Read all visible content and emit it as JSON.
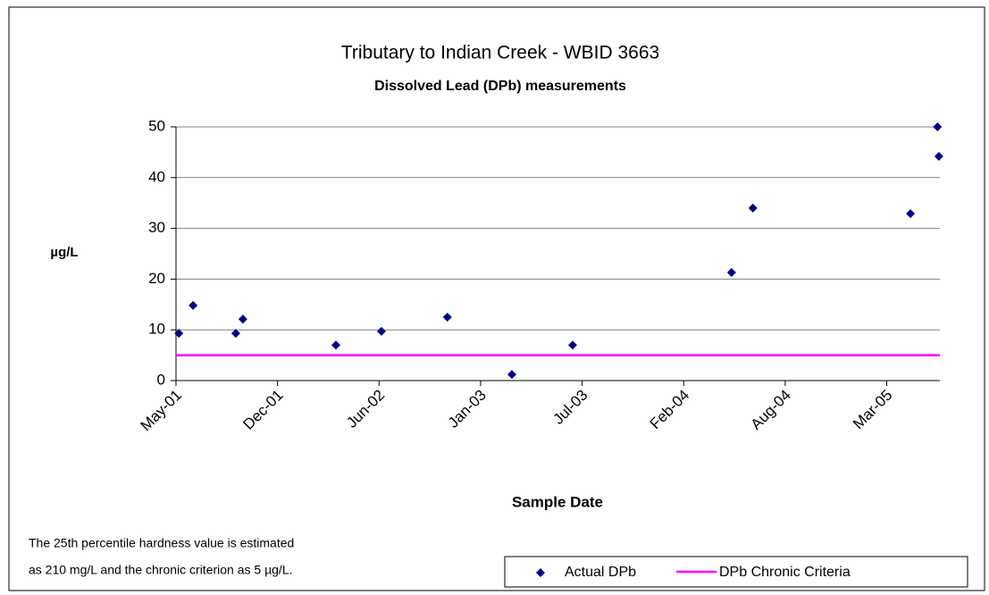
{
  "chart_data": {
    "type": "scatter",
    "title": "Tributary to Indian Creek - WBID 3663",
    "subtitle": "Dissolved Lead (DPb) measurements",
    "y_label": "µg/L",
    "x_label": "Sample Date",
    "annotation": [
      "The 25th percentile hardness value is estimated",
      "as 210 mg/L and the chronic criterion as 5 µg/L."
    ],
    "xlim": [
      37012,
      38622
    ],
    "xticks": [
      {
        "value": 37012,
        "label": "May-01"
      },
      {
        "value": 37226,
        "label": "Dec-01"
      },
      {
        "value": 37440,
        "label": "Jun-02"
      },
      {
        "value": 37654,
        "label": "Jan-03"
      },
      {
        "value": 37868,
        "label": "Jul-03"
      },
      {
        "value": 38082,
        "label": "Feb-04"
      },
      {
        "value": 38296,
        "label": "Aug-04"
      },
      {
        "value": 38510,
        "label": "Mar-05"
      }
    ],
    "ylim": [
      0,
      50
    ],
    "yticks": [
      0,
      10,
      20,
      30,
      40,
      50
    ],
    "grid": true,
    "legend": "bottom-right",
    "series": [
      {
        "name": "Actual DPb",
        "type": "scatter",
        "color": "#000080",
        "x": [
          37018,
          37048,
          37138,
          37153,
          37349,
          37445,
          37584,
          37720,
          37848,
          38183,
          38228,
          38560,
          38617,
          38620
        ],
        "values": [
          9.3,
          14.8,
          9.3,
          12.1,
          7.0,
          9.7,
          12.5,
          1.2,
          7.0,
          21.3,
          34.0,
          32.9,
          50.0,
          44.2
        ]
      },
      {
        "name": "DPb Chronic Criteria",
        "type": "line",
        "color": "#ff00ff",
        "x": [
          37012,
          38622
        ],
        "values": [
          5,
          5
        ]
      }
    ]
  }
}
